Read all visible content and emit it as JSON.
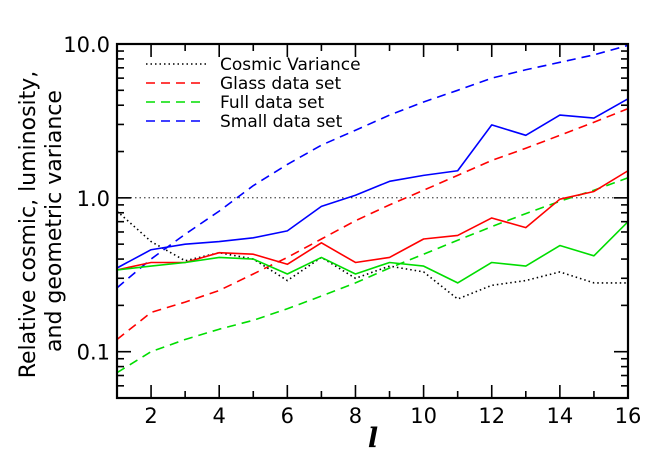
{
  "chart_data": {
    "type": "line",
    "xlabel": "l",
    "ylabel_lines": [
      "Relative cosmic, luminosity,",
      "and geometric variance"
    ],
    "xlim": [
      1,
      16
    ],
    "ylim": [
      0.05,
      10
    ],
    "yscale": "log",
    "x_ticks": [
      2,
      4,
      6,
      8,
      10,
      12,
      14,
      16
    ],
    "y_ticks": [
      {
        "value": 0.1,
        "label": "0.1"
      },
      {
        "value": 1,
        "label": "1.0"
      },
      {
        "value": 10,
        "label": "10.0"
      }
    ],
    "reference_line": {
      "y": 1.0,
      "style": "dotted",
      "color": "#000000"
    },
    "legend_position": "top-left",
    "x": [
      1,
      2,
      3,
      4,
      5,
      6,
      7,
      8,
      9,
      10,
      11,
      12,
      13,
      14,
      15,
      16
    ],
    "series": [
      {
        "name": "Cosmic Variance",
        "legend_style": "dotted",
        "color": "#000000",
        "dash": "1.5 3",
        "values": [
          0.82,
          0.52,
          0.39,
          0.44,
          0.4,
          0.29,
          0.41,
          0.3,
          0.36,
          0.33,
          0.22,
          0.27,
          0.29,
          0.33,
          0.28,
          0.28
        ]
      },
      {
        "name": "Glass data set",
        "legend_style": "dashed",
        "color": "#ff0000",
        "dash": "9 6",
        "values": [
          0.12,
          0.18,
          0.21,
          0.25,
          0.32,
          0.41,
          0.54,
          0.71,
          0.9,
          1.12,
          1.4,
          1.75,
          2.1,
          2.55,
          3.1,
          3.8
        ]
      },
      {
        "name": "Full data set",
        "legend_style": "dashed",
        "color": "#00dd00",
        "dash": "9 6",
        "values": [
          0.073,
          0.1,
          0.12,
          0.14,
          0.16,
          0.19,
          0.23,
          0.28,
          0.35,
          0.43,
          0.53,
          0.65,
          0.79,
          0.95,
          1.12,
          1.35
        ]
      },
      {
        "name": "Small data set",
        "legend_style": "dashed",
        "color": "#0000ff",
        "dash": "9 6",
        "values": [
          0.26,
          0.4,
          0.58,
          0.82,
          1.2,
          1.65,
          2.2,
          2.75,
          3.45,
          4.2,
          5.0,
          6.0,
          6.8,
          7.6,
          8.5,
          9.8
        ]
      },
      {
        "name": "",
        "legend_style": "none",
        "color": "#ff0000",
        "dash": "",
        "values": [
          0.34,
          0.38,
          0.38,
          0.44,
          0.43,
          0.37,
          0.51,
          0.38,
          0.41,
          0.54,
          0.57,
          0.74,
          0.64,
          0.98,
          1.1,
          1.5
        ]
      },
      {
        "name": "",
        "legend_style": "none",
        "color": "#00dd00",
        "dash": "",
        "values": [
          0.34,
          0.36,
          0.38,
          0.41,
          0.4,
          0.32,
          0.41,
          0.32,
          0.38,
          0.36,
          0.28,
          0.38,
          0.36,
          0.49,
          0.42,
          0.7
        ]
      },
      {
        "name": "",
        "legend_style": "none",
        "color": "#0000ff",
        "dash": "",
        "values": [
          0.35,
          0.46,
          0.5,
          0.52,
          0.55,
          0.61,
          0.88,
          1.04,
          1.28,
          1.4,
          1.5,
          2.98,
          2.55,
          3.45,
          3.3,
          4.4
        ]
      }
    ]
  }
}
